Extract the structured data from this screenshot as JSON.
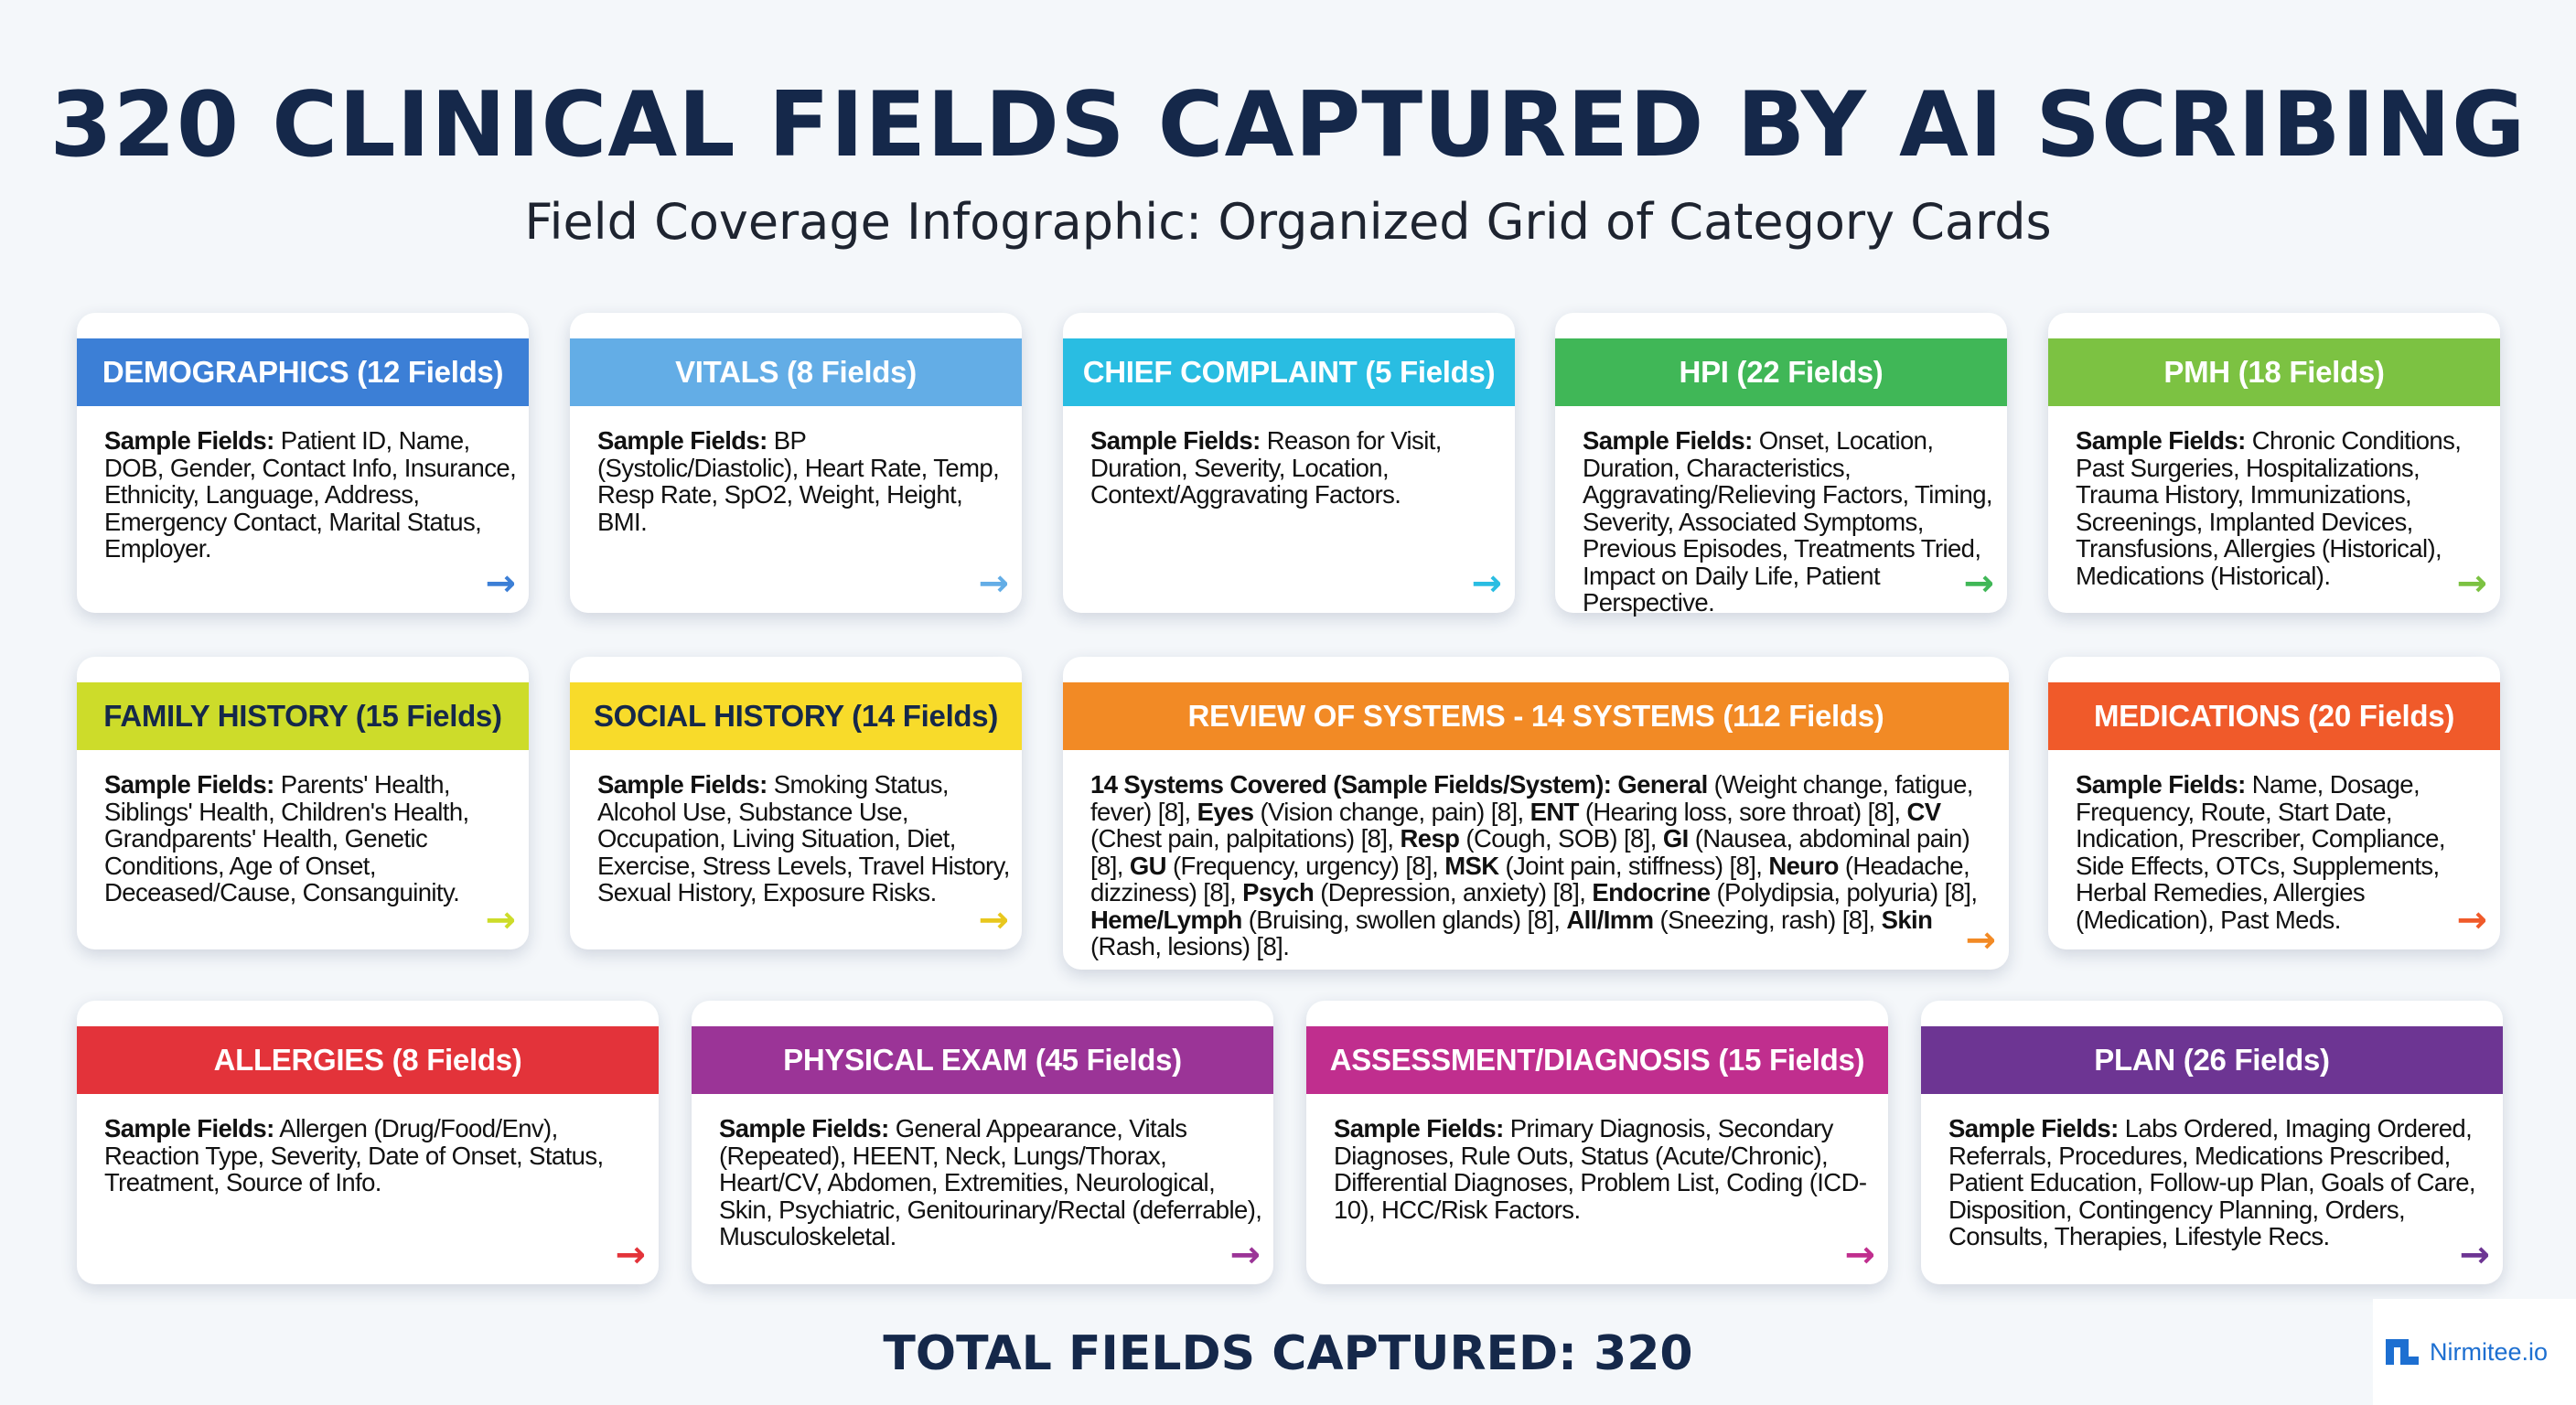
{
  "header": {
    "title": "320 CLINICAL FIELDS CAPTURED BY AI SCRIBING",
    "subtitle": "Field Coverage Infographic: Organized Grid of Category Cards"
  },
  "cards": [
    {
      "title": "DEMOGRAPHICS (12 Fields)",
      "color": "#3c7fd6",
      "text_color": "#ffffff",
      "arrow_color": "#3c7fd6",
      "body": [
        [
          "b",
          "Sample Fields:"
        ],
        [
          "t",
          " Patient ID, Name, DOB, Gender, Contact Info, Insurance, Ethnicity, Language, Address, Emergency Contact, Marital Status, Employer."
        ]
      ]
    },
    {
      "title": "VITALS (8 Fields)",
      "color": "#63ade6",
      "text_color": "#ffffff",
      "arrow_color": "#63ade6",
      "body": [
        [
          "b",
          "Sample Fields:"
        ],
        [
          "t",
          " BP (Systolic/Diastolic), Heart Rate, Temp, Resp Rate, SpO2, Weight, Height, BMI."
        ]
      ]
    },
    {
      "title": "CHIEF COMPLAINT (5 Fields)",
      "color": "#29bde2",
      "text_color": "#ffffff",
      "arrow_color": "#29bde2",
      "body": [
        [
          "b",
          "Sample Fields:"
        ],
        [
          "t",
          " Reason for Visit, Duration, Severity, Location, Context/Aggravating Factors."
        ]
      ]
    },
    {
      "title": "HPI (22 Fields)",
      "color": "#40b757",
      "text_color": "#ffffff",
      "arrow_color": "#40b757",
      "body": [
        [
          "b",
          "Sample Fields:"
        ],
        [
          "t",
          " Onset, Location, Duration, Characteristics, Aggravating/Relieving Factors, Timing, Severity, Associated Symptoms, Previous Episodes, Treatments Tried, Impact on Daily Life, Patient Perspective."
        ]
      ]
    },
    {
      "title": "PMH (18 Fields)",
      "color": "#7cc242",
      "text_color": "#ffffff",
      "arrow_color": "#7cc242",
      "body": [
        [
          "b",
          "Sample Fields:"
        ],
        [
          "t",
          " Chronic Conditions, Past Surgeries, Hospitalizations, Trauma History, Immunizations, Screenings, Implanted Devices, Transfusions, Allergies (Historical), Medications (Historical)."
        ]
      ]
    },
    {
      "title": "FAMILY HISTORY (15 Fields)",
      "color": "#cddc2a",
      "text_color": "#15284a",
      "arrow_color": "#cddc2a",
      "body": [
        [
          "b",
          "Sample Fields:"
        ],
        [
          "t",
          " Parents' Health, Siblings' Health, Children's Health, Grandparents' Health, Genetic Conditions, Age of Onset, Deceased/Cause, Consanguinity."
        ]
      ]
    },
    {
      "title": "SOCIAL HISTORY (14 Fields)",
      "color": "#f8db2a",
      "text_color": "#15284a",
      "arrow_color": "#e8c71e",
      "body": [
        [
          "b",
          "Sample Fields:"
        ],
        [
          "t",
          " Smoking Status, Alcohol Use, Substance Use, Occupation, Living Situation, Diet, Exercise, Stress Levels, Travel History, Sexual History, Exposure Risks."
        ]
      ]
    },
    {
      "title": "REVIEW OF SYSTEMS - 14 SYSTEMS (112 Fields)",
      "color": "#f28a25",
      "text_color": "#ffffff",
      "arrow_color": "#f28a25",
      "body": [
        [
          "b",
          "14 Systems Covered (Sample Fields/System): General"
        ],
        [
          "t",
          " (Weight change, fatigue, fever) [8], "
        ],
        [
          "b",
          "Eyes"
        ],
        [
          "t",
          " (Vision change, pain) [8], "
        ],
        [
          "b",
          "ENT"
        ],
        [
          "t",
          " (Hearing loss, sore throat) [8], "
        ],
        [
          "b",
          "CV"
        ],
        [
          "t",
          " (Chest pain, palpitations) [8], "
        ],
        [
          "b",
          "Resp"
        ],
        [
          "t",
          " (Cough, SOB) [8], "
        ],
        [
          "b",
          "GI"
        ],
        [
          "t",
          " (Nausea, abdominal pain) [8], "
        ],
        [
          "b",
          "GU"
        ],
        [
          "t",
          " (Frequency, urgency) [8], "
        ],
        [
          "b",
          "MSK"
        ],
        [
          "t",
          " (Joint pain, stiffness) [8], "
        ],
        [
          "b",
          "Neuro"
        ],
        [
          "t",
          " (Headache, dizziness) [8], "
        ],
        [
          "b",
          "Psych"
        ],
        [
          "t",
          " (Depression, anxiety) [8], "
        ],
        [
          "b",
          "Endocrine"
        ],
        [
          "t",
          " (Polydipsia, polyuria) [8], "
        ],
        [
          "b",
          "Heme/Lymph"
        ],
        [
          "t",
          " (Bruising, swollen glands) [8], "
        ],
        [
          "b",
          "All/Imm"
        ],
        [
          "t",
          " (Sneezing, rash) [8], "
        ],
        [
          "b",
          "Skin"
        ],
        [
          "t",
          " (Rash, lesions) [8]."
        ]
      ]
    },
    {
      "title": "MEDICATIONS (20 Fields)",
      "color": "#f05a2a",
      "text_color": "#ffffff",
      "arrow_color": "#f05a2a",
      "body": [
        [
          "b",
          "Sample Fields:"
        ],
        [
          "t",
          " Name, Dosage, Frequency, Route, Start Date, Indication, Prescriber, Compliance, Side Effects, OTCs, Supplements, Herbal Remedies, Allergies (Medication), Past Meds."
        ]
      ]
    },
    {
      "title": "ALLERGIES (8 Fields)",
      "color": "#e3333a",
      "text_color": "#ffffff",
      "arrow_color": "#e3333a",
      "body": [
        [
          "b",
          "Sample Fields:"
        ],
        [
          "t",
          " Allergen (Drug/Food/Env), Reaction Type, Severity, Date of Onset, Status, Treatment, Source of Info."
        ]
      ]
    },
    {
      "title": "PHYSICAL EXAM (45 Fields)",
      "color": "#9b3497",
      "text_color": "#ffffff",
      "arrow_color": "#9b3497",
      "body": [
        [
          "b",
          "Sample Fields:"
        ],
        [
          "t",
          " General Appearance, Vitals (Repeated), HEENT, Neck, Lungs/Thorax, Heart/CV, Abdomen, Extremities, Neurological, Skin, Psychiatric, Genitourinary/Rectal (deferrable), Musculoskeletal."
        ]
      ]
    },
    {
      "title": "ASSESSMENT/DIAGNOSIS (15 Fields)",
      "color": "#c02e8e",
      "text_color": "#ffffff",
      "arrow_color": "#c02e8e",
      "body": [
        [
          "b",
          "Sample Fields:"
        ],
        [
          "t",
          " Primary Diagnosis, Secondary Diagnoses, Rule Outs, Status (Acute/Chronic), Differential Diagnoses, Problem List, Coding (ICD-10), HCC/Risk Factors."
        ]
      ]
    },
    {
      "title": "PLAN (26 Fields)",
      "color": "#6d3593",
      "text_color": "#ffffff",
      "arrow_color": "#6d3593",
      "body": [
        [
          "b",
          "Sample Fields:"
        ],
        [
          "t",
          " Labs Ordered, Imaging Ordered, Referrals, Procedures, Medications Prescribed, Patient Education, Follow-up Plan, Goals of Care, Disposition, Contingency Planning, Orders, Consults, Therapies, Lifestyle Recs."
        ]
      ]
    }
  ],
  "footer": {
    "total": "TOTAL FIELDS CAPTURED: 320",
    "brand": "Nirmitee.io",
    "brand_color": "#1d6fd1"
  }
}
